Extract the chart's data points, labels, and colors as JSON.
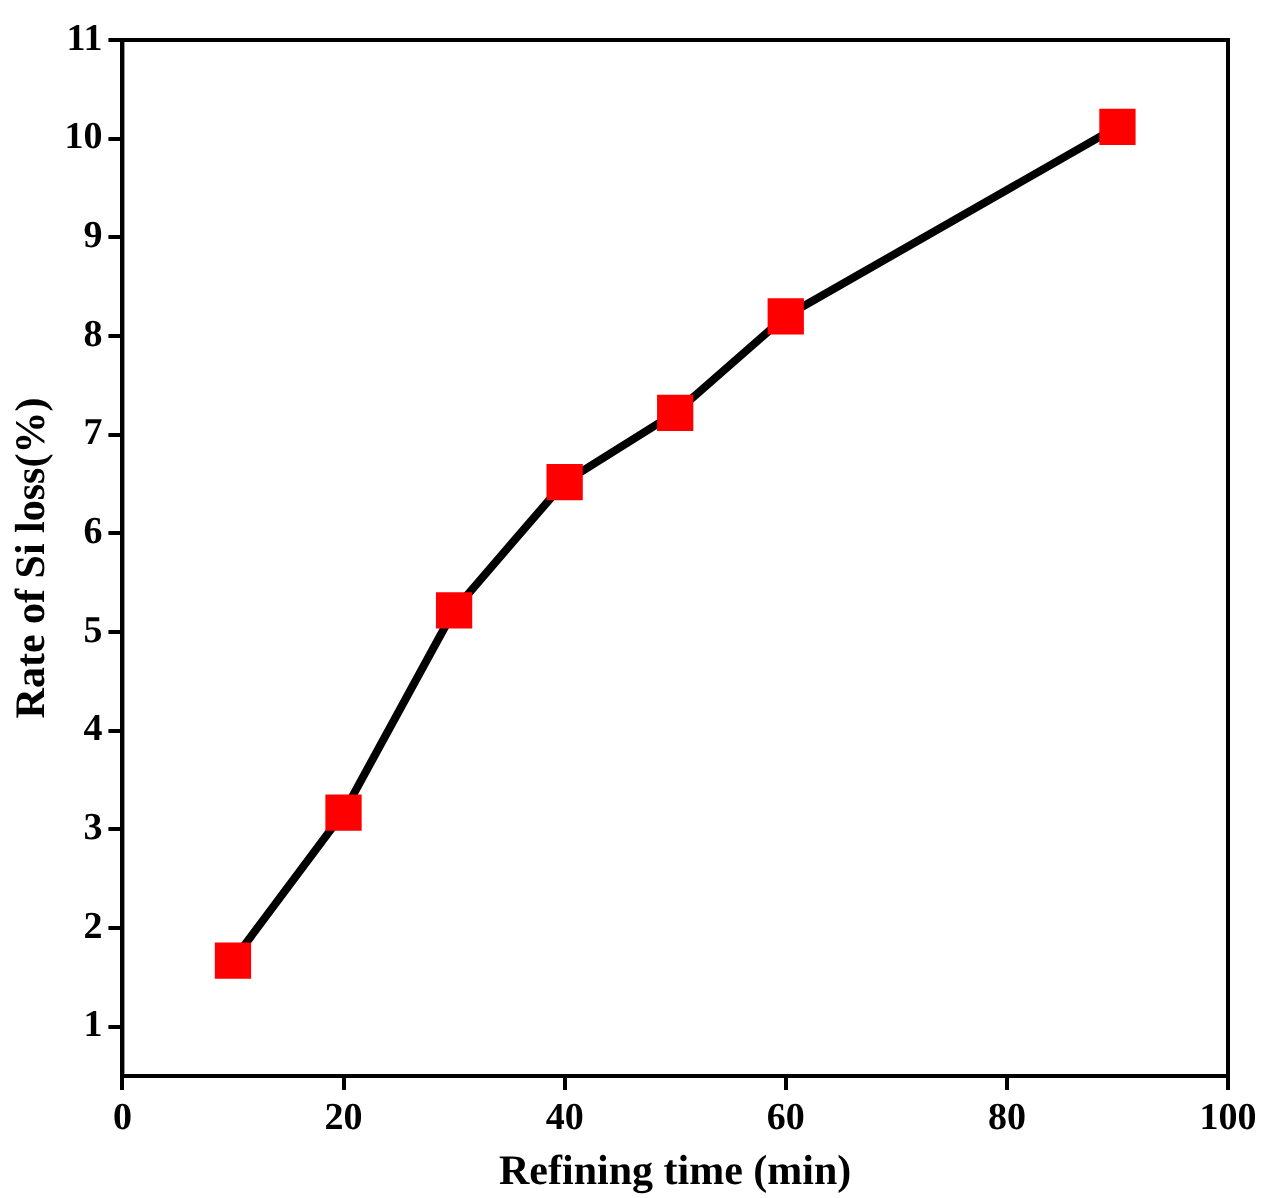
{
  "chart_data": {
    "type": "line",
    "xlabel": "Refining time (min)",
    "ylabel": "Rate of Si loss(%)",
    "x": [
      10,
      20,
      30,
      40,
      50,
      60,
      90
    ],
    "series": [
      {
        "color": "#000000",
        "values": [
          1.67,
          3.17,
          5.22,
          6.52,
          7.22,
          8.2,
          10.12
        ]
      }
    ],
    "marker": "square",
    "line_style": "solid",
    "grid": false,
    "legend": false,
    "xlim": [
      0,
      100
    ],
    "xticks": [
      0,
      20,
      40,
      60,
      80,
      100
    ],
    "ylim": [
      0.5,
      11
    ],
    "yticks": [
      1,
      2,
      3,
      4,
      5,
      6,
      7,
      8,
      9,
      10,
      11
    ]
  }
}
